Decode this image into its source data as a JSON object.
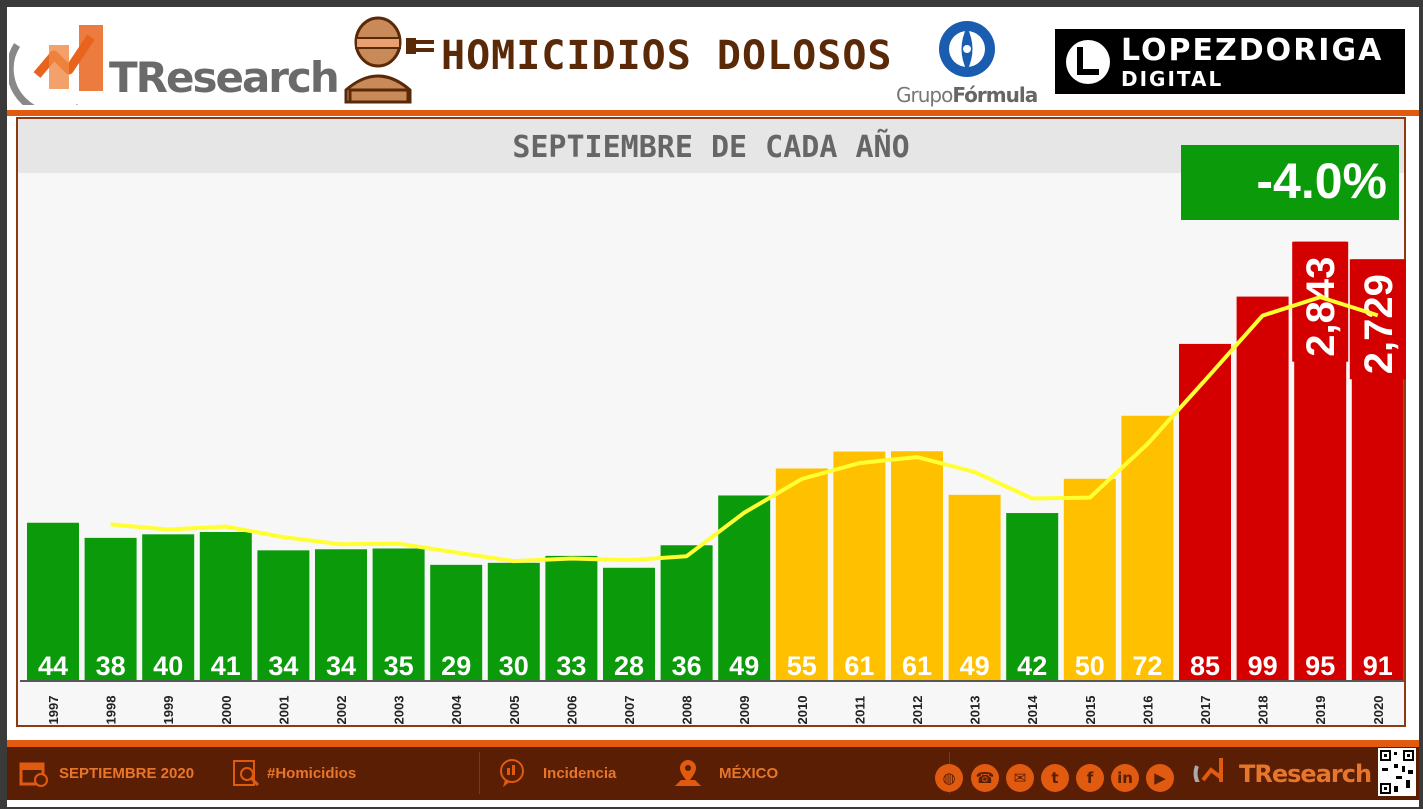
{
  "header": {
    "brand": "TResearch",
    "title": "HOMICIDIOS DOLOSOS",
    "partner_1": {
      "text_light": "Grupo",
      "text_bold": "Fórmula"
    },
    "partner_2": {
      "line1": "LOPEZDORIGA",
      "line2": "DIGITAL"
    }
  },
  "change": "-4.0%",
  "chart_data": {
    "type": "bar",
    "subtitle": "SEPTIEMBRE DE CADA AÑO",
    "categories": [
      "1997",
      "1998",
      "1999",
      "2000",
      "2001",
      "2002",
      "2003",
      "2004",
      "2005",
      "2006",
      "2007",
      "2008",
      "2009",
      "2010",
      "2011",
      "2012",
      "2013",
      "2014",
      "2015",
      "2016",
      "2017",
      "2018",
      "2019",
      "2020"
    ],
    "series": [
      {
        "values": [
          1020,
          922,
          945,
          960,
          841,
          848,
          853,
          747,
          760,
          805,
          728,
          874,
          1197,
          1372,
          1482,
          1484,
          1201,
          1083,
          1305,
          1714,
          2180,
          2487,
          2843,
          2729
        ]
      }
    ],
    "data_labels": [
      "44",
      "38",
      "40",
      "41",
      "34",
      "34",
      "35",
      "29",
      "30",
      "33",
      "28",
      "36",
      "49",
      "55",
      "61",
      "61",
      "49",
      "42",
      "50",
      "72",
      "85",
      "99",
      "95",
      "91"
    ],
    "highlight_labels": [
      {
        "index": 22,
        "text": "2,843"
      },
      {
        "index": 23,
        "text": "2,729"
      }
    ],
    "trend_line": [
      null,
      1009,
      976,
      996,
      927,
      880,
      884,
      827,
      771,
      788,
      778,
      803,
      1085,
      1304,
      1407,
      1446,
      1349,
      1177,
      1183,
      1530,
      1944,
      2364,
      2484,
      2365
    ],
    "colors": {
      "green": "#0a9a0a",
      "yellow": "#ffc000",
      "red": "#d40000",
      "trend": "#ffff33"
    },
    "bar_colors": [
      "green",
      "green",
      "green",
      "green",
      "green",
      "green",
      "green",
      "green",
      "green",
      "green",
      "green",
      "green",
      "green",
      "yellow",
      "yellow",
      "yellow",
      "yellow",
      "green",
      "yellow",
      "yellow",
      "red",
      "red",
      "red",
      "red"
    ],
    "ylim": [
      0,
      3600
    ]
  },
  "footer": {
    "date": "SEPTIEMBRE 2020",
    "hashtag": "#Homicidios",
    "topic": "Incidencia",
    "place": "MÉXICO",
    "brand": "TResearch",
    "social_icons": [
      "globe-icon",
      "phone-icon",
      "mail-icon",
      "twitter-icon",
      "facebook-icon",
      "linkedin-icon",
      "youtube-icon"
    ]
  }
}
